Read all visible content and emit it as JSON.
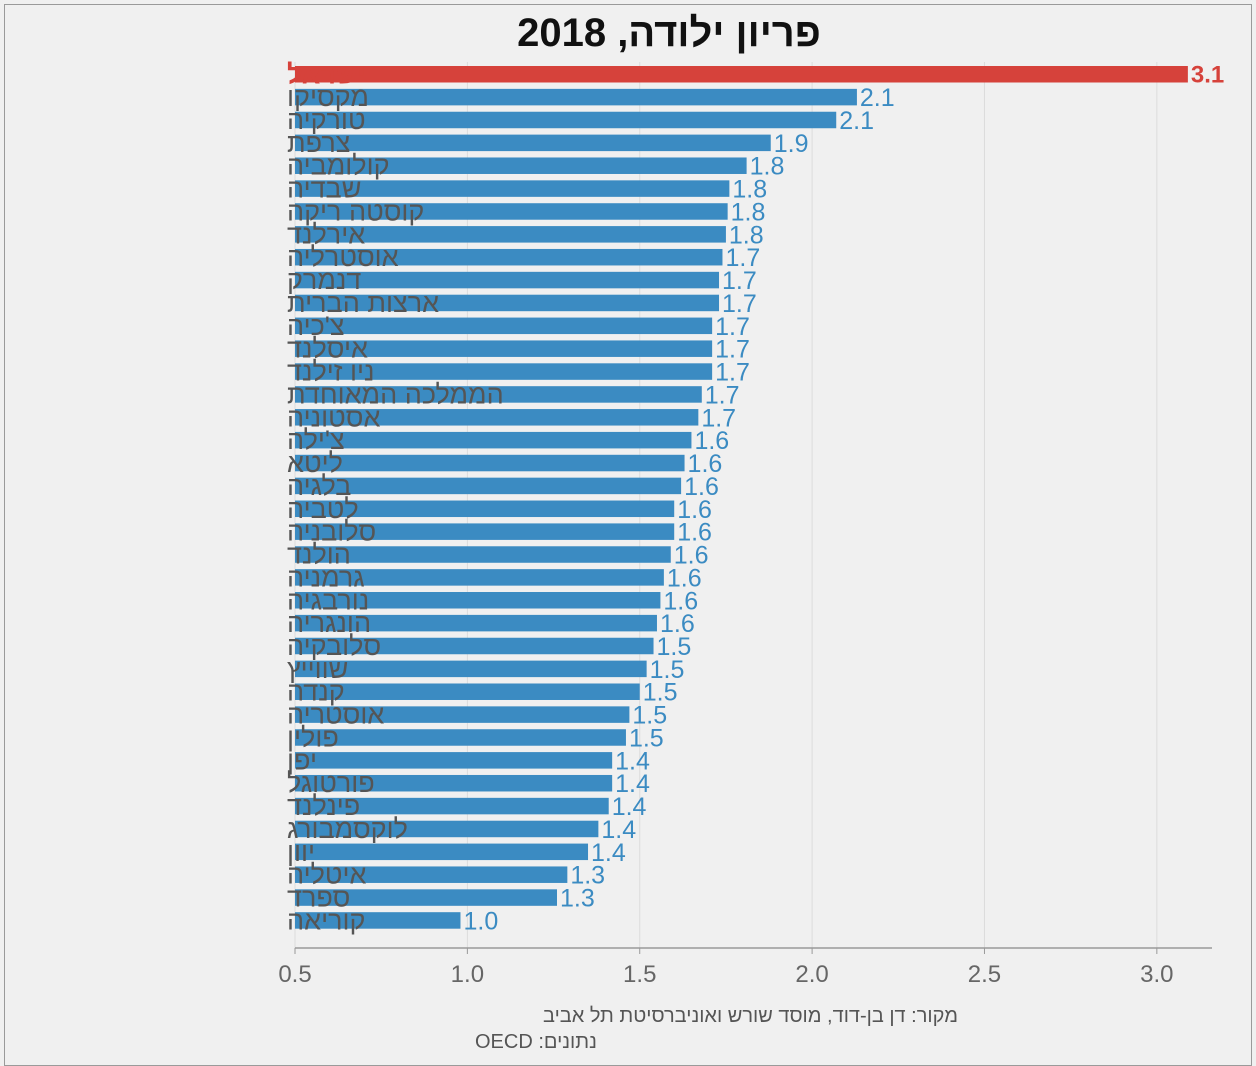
{
  "chart_data": {
    "type": "bar",
    "orientation": "horizontal",
    "title": "פריון ילודה, 2018",
    "categories": [
      "ישראל",
      "מקסיקו",
      "טורקיה",
      "צרפת",
      "קולומביה",
      "שבדיה",
      "קוסטה ריקה",
      "אירלנד",
      "אוסטרליה",
      "דנמרק",
      "ארצות הברית",
      "צ'כיה",
      "איסלנד",
      "ניו זילנד",
      "הממלכה המאוחדת",
      "אסטוניה",
      "צ'ילה",
      "ליטא",
      "בלגיה",
      "לטביה",
      "סלובניה",
      "הולנד",
      "גרמניה",
      "נורבגיה",
      "הונגריה",
      "סלובקיה",
      "שווייץ",
      "קנדה",
      "אוסטריה",
      "פולין",
      "יפן",
      "פורטוגל",
      "פינלנד",
      "לוקסמבורג",
      "יוון",
      "איטליה",
      "ספרד",
      "קוריאה"
    ],
    "values": [
      3.09,
      2.13,
      2.07,
      1.88,
      1.81,
      1.76,
      1.755,
      1.75,
      1.74,
      1.73,
      1.73,
      1.71,
      1.71,
      1.71,
      1.68,
      1.67,
      1.65,
      1.63,
      1.62,
      1.6,
      1.6,
      1.59,
      1.57,
      1.56,
      1.55,
      1.54,
      1.52,
      1.5,
      1.47,
      1.46,
      1.42,
      1.42,
      1.41,
      1.38,
      1.35,
      1.29,
      1.26,
      0.98
    ],
    "value_labels": [
      "3.1",
      "2.1",
      "2.1",
      "1.9",
      "1.8",
      "1.8",
      "1.8",
      "1.8",
      "1.7",
      "1.7",
      "1.7",
      "1.7",
      "1.7",
      "1.7",
      "1.7",
      "1.7",
      "1.6",
      "1.6",
      "1.6",
      "1.6",
      "1.6",
      "1.6",
      "1.6",
      "1.6",
      "1.6",
      "1.5",
      "1.5",
      "1.5",
      "1.5",
      "1.5",
      "1.4",
      "1.4",
      "1.4",
      "1.4",
      "1.4",
      "1.3",
      "1.3",
      "1.0"
    ],
    "highlight_index": 0,
    "xlim": [
      0.5,
      3.16
    ],
    "xticks": [
      0.5,
      1.0,
      1.5,
      2.0,
      2.5,
      3.0
    ],
    "xtick_labels": [
      "0.5",
      "1.0",
      "1.5",
      "2.0",
      "2.5",
      "3.0"
    ],
    "grid": true,
    "bar_color": "#3b8bc2",
    "highlight_color": "#d6423b"
  },
  "footer": {
    "source": "מקור:  דן בן-דוד, מוסד שורש ואוניברסיטת תל אביב",
    "data_note": "נתונים: OECD"
  },
  "colors": {
    "background": "#f0f0f0",
    "grid": "#dcdcdc",
    "axis": "#999999"
  }
}
